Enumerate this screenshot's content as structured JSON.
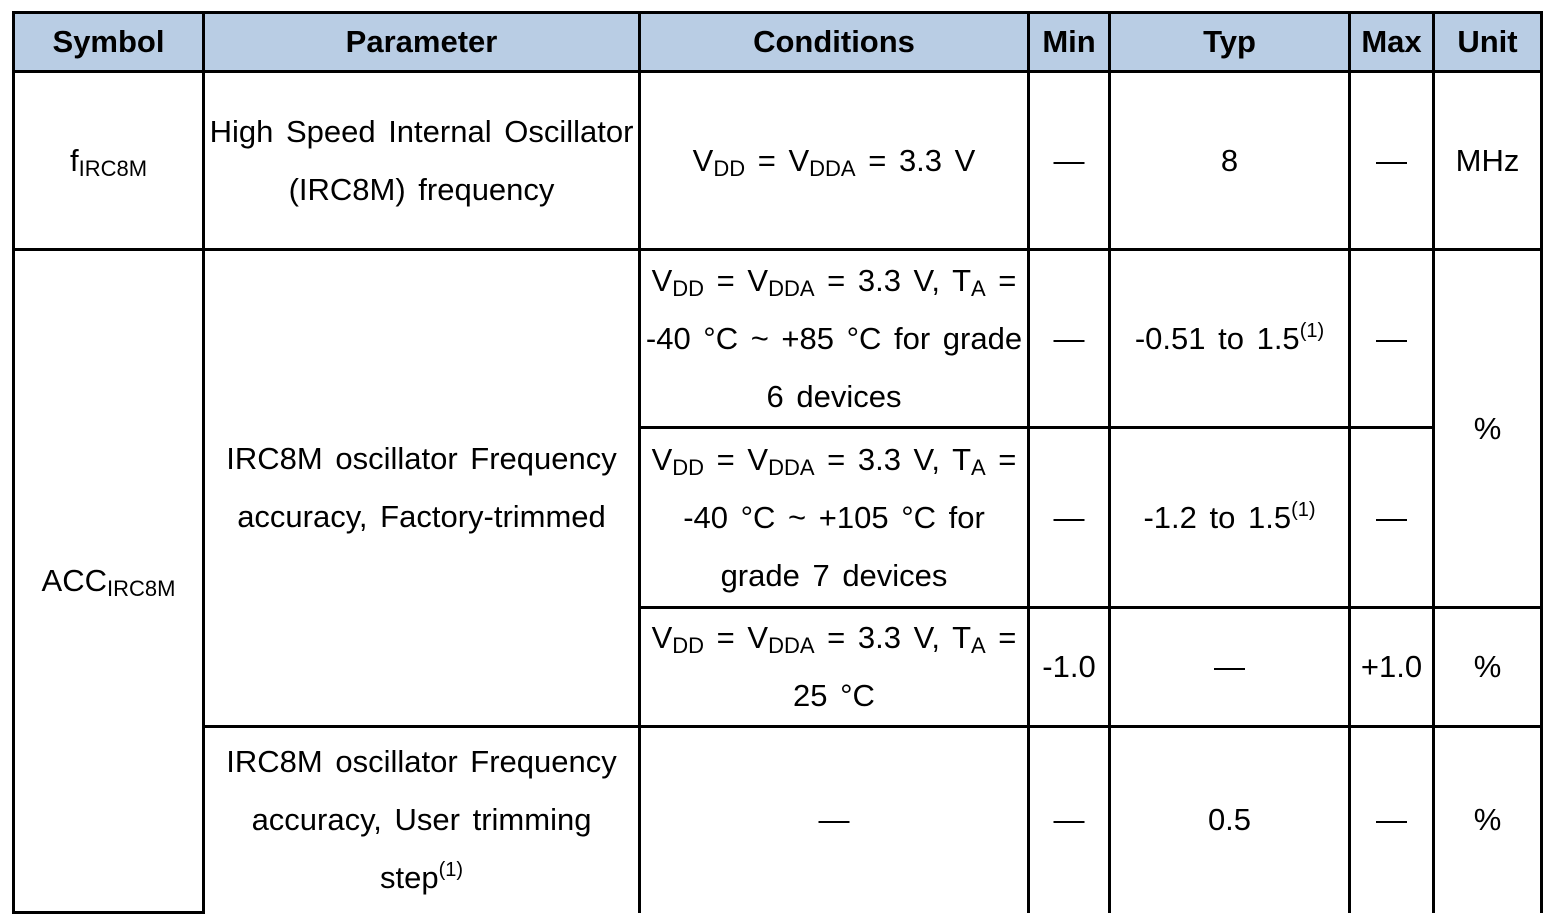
{
  "headers": {
    "symbol": "Symbol",
    "parameter": "Parameter",
    "conditions": "Conditions",
    "min": "Min",
    "typ": "Typ",
    "max": "Max",
    "unit": "Unit"
  },
  "row1": {
    "symbol_main": "f",
    "symbol_sub": "IRC8M",
    "parameter": "High Speed Internal Oscillator (IRC8M) frequency",
    "cond": {
      "v": "V",
      "dd": "DD",
      "eq": " = V",
      "dda": "DDA",
      "rest": " = 3.3 V"
    },
    "min": "—",
    "typ": "8",
    "max": "—",
    "unit": "MHz"
  },
  "acc": {
    "symbol_main": "ACC",
    "symbol_sub": "IRC8M",
    "parameter_factory": "IRC8M oscillator Frequency accuracy, Factory-trimmed",
    "unit_pct": "%",
    "r1": {
      "v": "V",
      "dd": "DD",
      "eq": " = V",
      "dda": "DDA",
      "vrest": " = 3.3 V,",
      "t": "T",
      "a": "A",
      "trest": " = -40 °C ~ +85 °C for grade 6 devices",
      "min": "—",
      "typ": "-0.51 to 1.5",
      "typ_note": "(1)",
      "max": "—"
    },
    "r2": {
      "v": "V",
      "dd": "DD",
      "eq": " = V",
      "dda": "DDA",
      "vrest": " = 3.3 V,",
      "t": "T",
      "a": "A",
      "trest": " = -40 °C ~ +105 °C for grade 7 devices",
      "min": "—",
      "typ": "-1.2 to 1.5",
      "typ_note": "(1)",
      "max": "—"
    },
    "r3": {
      "v": "V",
      "dd": "DD",
      "eq": " = V",
      "dda": "DDA",
      "vrest": " = 3.3 V, T",
      "a": "A",
      "trest": " = 25 °C",
      "min": "-1.0",
      "typ": "—",
      "max": "+1.0",
      "unit": "%"
    },
    "r4": {
      "parameter": "IRC8M oscillator Frequency accuracy, User trimming step",
      "param_note": "(1)",
      "cond": "—",
      "min": "—",
      "typ": "0.5",
      "max": "—",
      "unit": "%"
    }
  }
}
